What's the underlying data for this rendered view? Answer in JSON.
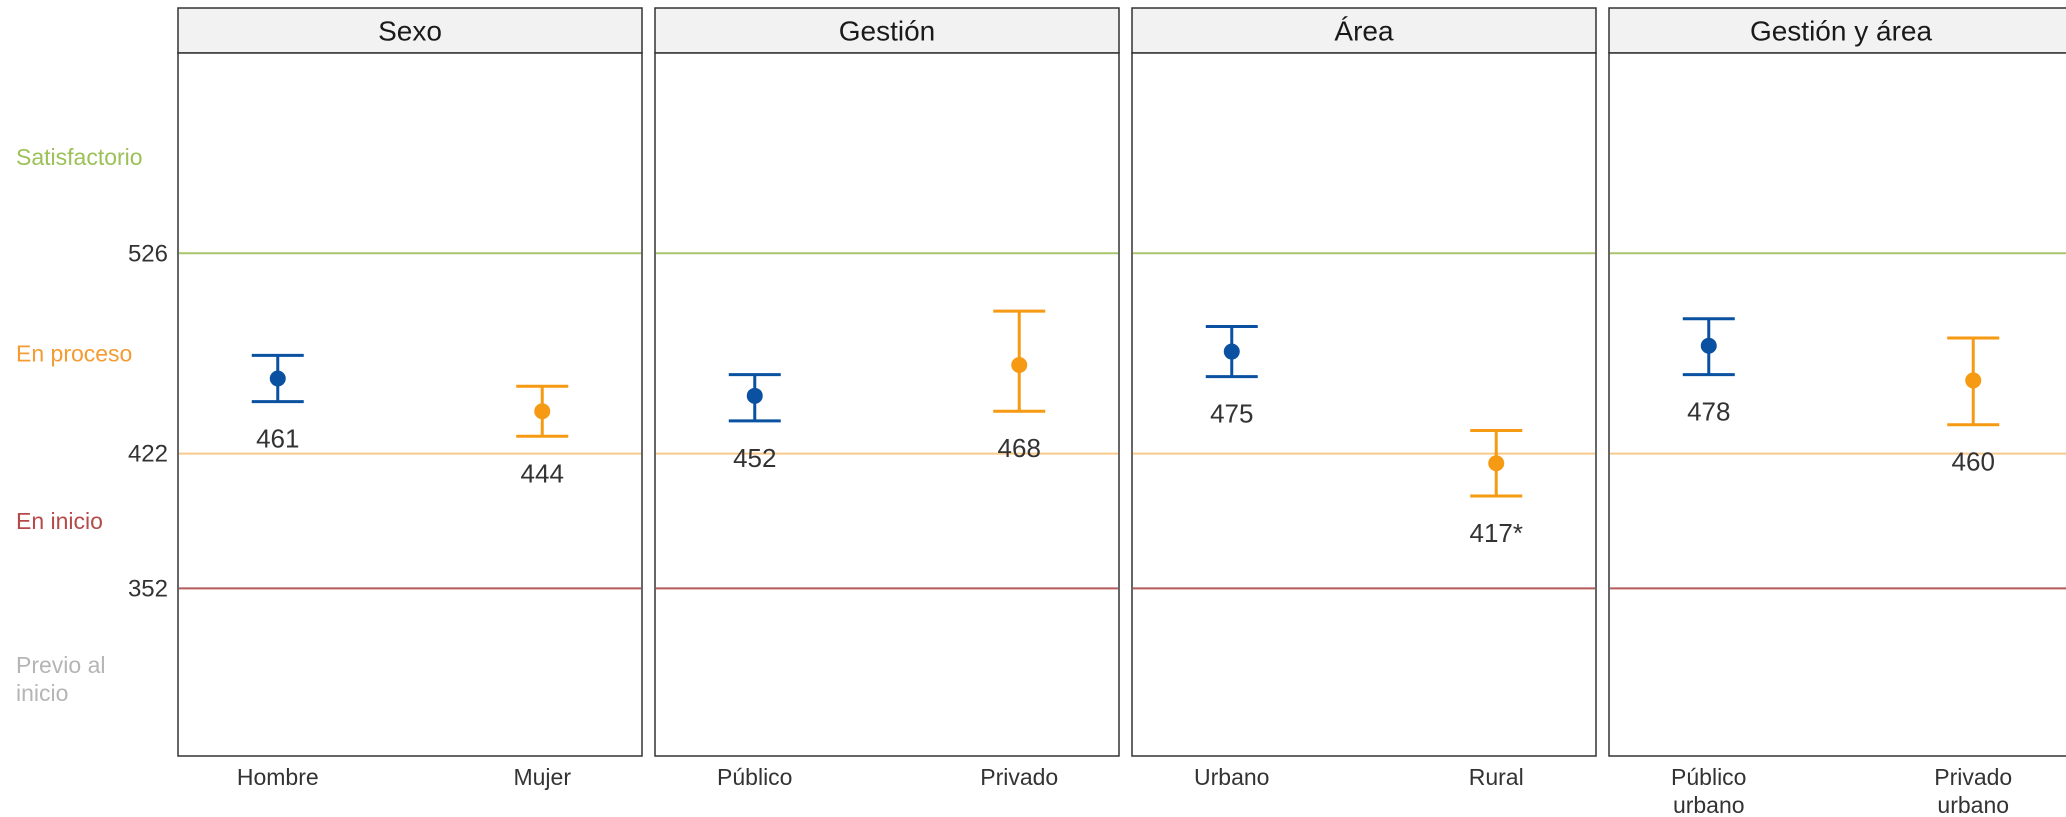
{
  "chart_data": {
    "type": "scatter",
    "subtype": "point-with-error-bars, faceted",
    "y_scale": {
      "min": 265,
      "max": 630
    },
    "thresholds": [
      {
        "value": 526,
        "label": "526",
        "color": "#a9c46c"
      },
      {
        "value": 422,
        "label": "422",
        "color": "#f7c98a"
      },
      {
        "value": 352,
        "label": "352",
        "color": "#b55a5a"
      }
    ],
    "levels": [
      {
        "name": "Satisfactorio",
        "y": 576,
        "color": "#9bc157"
      },
      {
        "name": "En proceso",
        "y": 474,
        "color": "#f49c33"
      },
      {
        "name": "En inicio",
        "y": 387,
        "color": "#b54a4a"
      },
      {
        "name": "Previo al inicio",
        "lines": [
          "Previo al",
          "inicio"
        ],
        "y": 305,
        "color": "#b5b5b5"
      }
    ],
    "series_colors": {
      "blue": "#0a51a1",
      "orange": "#f59a12"
    },
    "facets": [
      {
        "title": "Sexo",
        "points": [
          {
            "category": "Hombre",
            "lines": [
              "Hombre"
            ],
            "value": 461,
            "label": "461",
            "low": 449,
            "high": 473,
            "color": "blue"
          },
          {
            "category": "Mujer",
            "lines": [
              "Mujer"
            ],
            "value": 444,
            "label": "444",
            "low": 431,
            "high": 457,
            "color": "orange"
          }
        ]
      },
      {
        "title": "Gestión",
        "points": [
          {
            "category": "Público",
            "lines": [
              "Público"
            ],
            "value": 452,
            "label": "452",
            "low": 439,
            "high": 463,
            "color": "blue"
          },
          {
            "category": "Privado",
            "lines": [
              "Privado"
            ],
            "value": 468,
            "label": "468",
            "low": 444,
            "high": 496,
            "color": "orange"
          }
        ]
      },
      {
        "title": "Área",
        "points": [
          {
            "category": "Urbano",
            "lines": [
              "Urbano"
            ],
            "value": 475,
            "label": "475",
            "low": 462,
            "high": 488,
            "color": "blue"
          },
          {
            "category": "Rural",
            "lines": [
              "Rural"
            ],
            "value": 417,
            "label": "417*",
            "low": 400,
            "high": 434,
            "color": "orange"
          }
        ]
      },
      {
        "title": "Gestión y área",
        "points": [
          {
            "category": "Público urbano",
            "lines": [
              "Público",
              "urbano"
            ],
            "value": 478,
            "label": "478",
            "low": 463,
            "high": 492,
            "color": "blue"
          },
          {
            "category": "Privado urbano",
            "lines": [
              "Privado",
              "urbano"
            ],
            "value": 460,
            "label": "460",
            "low": 437,
            "high": 482,
            "color": "orange"
          }
        ]
      }
    ]
  }
}
